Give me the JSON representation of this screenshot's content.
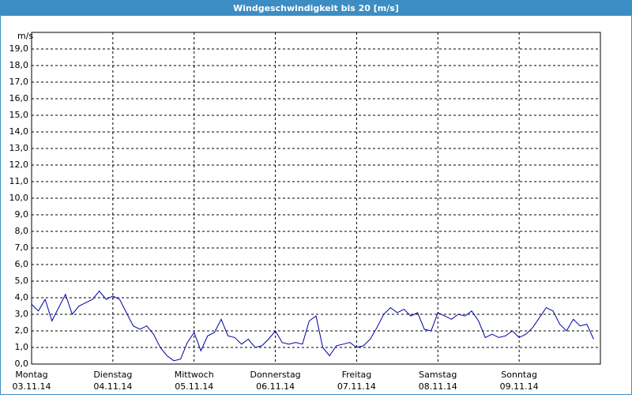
{
  "chart_data": {
    "type": "line",
    "title": "Windgeschwindigkeit bis 20 [m/s]",
    "y_label": "m/s",
    "xlim": [
      0,
      168
    ],
    "xticks": [
      {
        "value": 0,
        "label": "Montag"
      },
      {
        "value": 24,
        "label": "Dienstag"
      },
      {
        "value": 48,
        "label": "Mittwoch"
      },
      {
        "value": 72,
        "label": "Donnerstag"
      },
      {
        "value": 96,
        "label": "Freitag"
      },
      {
        "value": 120,
        "label": "Samstag"
      },
      {
        "value": 144,
        "label": "Sonntag"
      }
    ],
    "xtick_dates": [
      "03.11.14",
      "04.11.14",
      "05.11.14",
      "06.11.14",
      "07.11.14",
      "08.11.14",
      "09.11.14"
    ],
    "ylim": [
      0,
      20
    ],
    "yticks": [
      {
        "value": 0,
        "label": "0,0"
      },
      {
        "value": 1,
        "label": "1,0"
      },
      {
        "value": 2,
        "label": "2,0"
      },
      {
        "value": 3,
        "label": "3,0"
      },
      {
        "value": 4,
        "label": "4,0"
      },
      {
        "value": 5,
        "label": "5,0"
      },
      {
        "value": 6,
        "label": "6,0"
      },
      {
        "value": 7,
        "label": "7,0"
      },
      {
        "value": 8,
        "label": "8,0"
      },
      {
        "value": 9,
        "label": "9,0"
      },
      {
        "value": 10,
        "label": "10,0"
      },
      {
        "value": 11,
        "label": "11,0"
      },
      {
        "value": 12,
        "label": "12,0"
      },
      {
        "value": 13,
        "label": "13,0"
      },
      {
        "value": 14,
        "label": "14,0"
      },
      {
        "value": 15,
        "label": "15,0"
      },
      {
        "value": 16,
        "label": "16,0"
      },
      {
        "value": 17,
        "label": "17,0"
      },
      {
        "value": 18,
        "label": "18,0"
      },
      {
        "value": 19,
        "label": "19,0"
      }
    ],
    "grid": true,
    "x": [
      0,
      2,
      4,
      6,
      8,
      10,
      12,
      14,
      16,
      18,
      20,
      22,
      24,
      26,
      28,
      30,
      32,
      34,
      36,
      38,
      40,
      42,
      44,
      46,
      48,
      50,
      52,
      54,
      56,
      58,
      60,
      62,
      64,
      66,
      68,
      70,
      72,
      74,
      76,
      78,
      80,
      82,
      84,
      86,
      88,
      90,
      92,
      94,
      96,
      98,
      100,
      102,
      104,
      106,
      108,
      110,
      112,
      114,
      116,
      118,
      120,
      122,
      124,
      126,
      128,
      130,
      132,
      134,
      136,
      138,
      140,
      142,
      144,
      146,
      148,
      150,
      152,
      154,
      156,
      158,
      160,
      162,
      164,
      166
    ],
    "series": [
      {
        "color": "#0000a0",
        "values": [
          3.6,
          3.2,
          3.9,
          2.6,
          3.4,
          4.2,
          3.0,
          3.5,
          3.7,
          3.9,
          4.4,
          3.9,
          4.1,
          3.9,
          3.1,
          2.3,
          2.1,
          2.3,
          1.8,
          1.0,
          0.5,
          0.2,
          0.3,
          1.3,
          1.9,
          0.8,
          1.7,
          1.9,
          2.7,
          1.7,
          1.6,
          1.2,
          1.5,
          1.0,
          1.1,
          1.5,
          2.0,
          1.3,
          1.2,
          1.3,
          1.2,
          2.6,
          2.9,
          1.0,
          0.5,
          1.1,
          1.2,
          1.3,
          1.0,
          1.1,
          1.5,
          2.2,
          3.0,
          3.4,
          3.1,
          3.3,
          2.9,
          3.1,
          2.1,
          2.0,
          3.1,
          2.9,
          2.7,
          3.0,
          2.9,
          3.2,
          2.6,
          1.6,
          1.8,
          1.6,
          1.7,
          2.0,
          1.6,
          1.8,
          2.2,
          2.8,
          3.4,
          3.2,
          2.4,
          2.0,
          2.7,
          2.3,
          2.4,
          1.5
        ]
      }
    ]
  }
}
